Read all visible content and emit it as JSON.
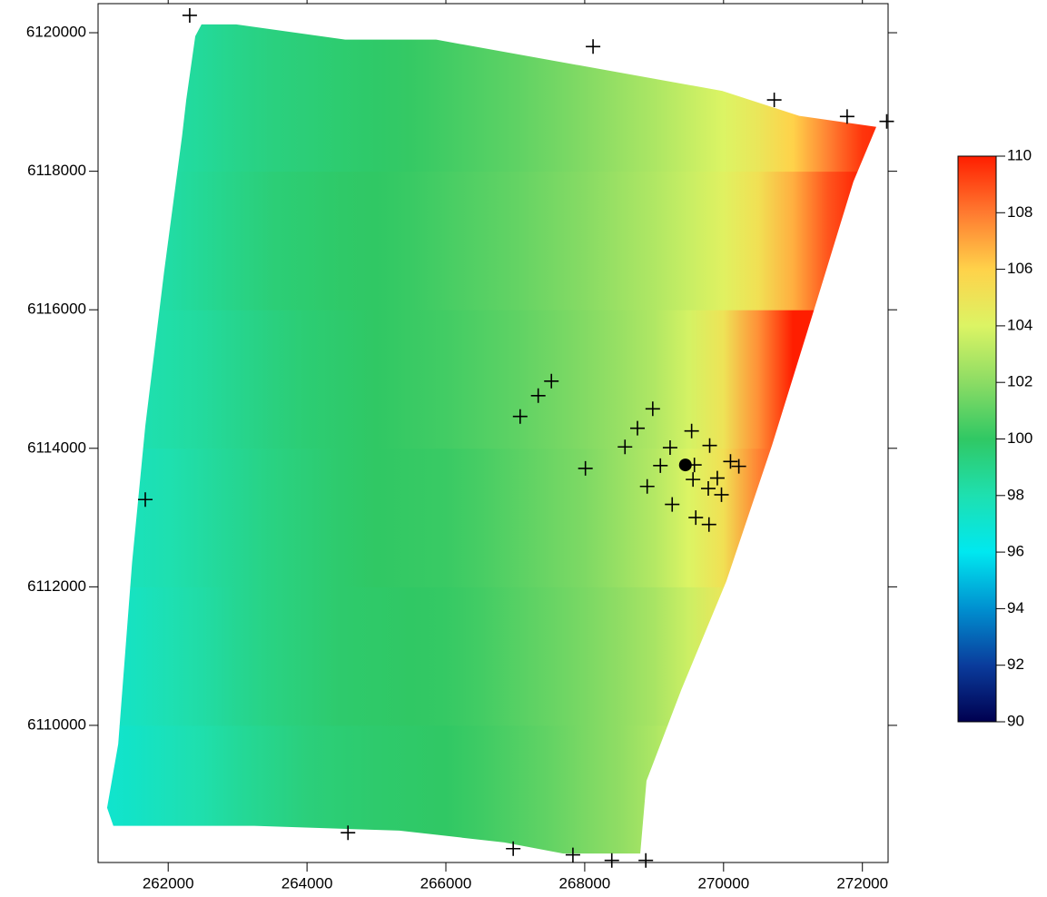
{
  "chart_data": {
    "type": "heatmap",
    "xlim": [
      260990,
      272370
    ],
    "ylim": [
      6108020,
      6120420
    ],
    "xticks": [
      262000,
      264000,
      266000,
      268000,
      270000,
      272000
    ],
    "yticks": [
      6110000,
      6112000,
      6114000,
      6116000,
      6118000,
      6120000
    ],
    "field": {
      "x": [
        261000,
        261500,
        262000,
        262500,
        263000,
        263500,
        264000,
        264500,
        265000,
        265500,
        266000,
        266500,
        267000,
        267500,
        268000,
        268500,
        269000,
        269500,
        270000,
        270500,
        271000,
        271500,
        272000,
        272500
      ],
      "y": [
        6109000,
        6111000,
        6113000,
        6115000,
        6117000,
        6119000
      ],
      "values": [
        [
          97,
          97.3,
          97.7,
          98.1,
          98.6,
          99,
          99.4,
          99.6,
          99.8,
          99.9,
          100,
          100.3,
          100.7,
          101.1,
          101.6,
          102.1,
          102.8,
          103.8,
          104.8,
          105.5,
          106,
          106.5,
          107,
          107.5
        ],
        [
          97.2,
          97.5,
          97.9,
          98.3,
          98.8,
          99.2,
          99.5,
          99.8,
          99.9,
          100,
          100.1,
          100.4,
          100.8,
          101.2,
          101.6,
          102.1,
          102.7,
          103.6,
          104.8,
          105.8,
          106.5,
          107,
          107.5,
          108
        ],
        [
          97.4,
          97.7,
          98,
          98.4,
          98.8,
          99.2,
          99.5,
          99.8,
          100,
          100.1,
          100.2,
          100.5,
          100.9,
          101.3,
          101.7,
          102.3,
          103,
          104,
          105.2,
          107.8,
          109.5,
          110,
          110,
          110
        ],
        [
          97.6,
          97.9,
          98.2,
          98.5,
          98.9,
          99.3,
          99.6,
          99.8,
          100,
          100.2,
          100.4,
          100.7,
          101,
          101.4,
          101.8,
          102.3,
          102.9,
          103.8,
          105,
          107.5,
          110,
          110,
          110,
          110
        ],
        [
          97.8,
          98,
          98.3,
          98.7,
          99.1,
          99.5,
          99.7,
          99.9,
          100,
          100.2,
          100.5,
          100.8,
          101.1,
          101.5,
          101.9,
          102.4,
          102.9,
          103.5,
          104.2,
          105.2,
          106.8,
          108.8,
          110,
          110
        ],
        [
          97.8,
          98,
          98.3,
          98.6,
          99,
          99.3,
          99.5,
          99.7,
          99.9,
          100.1,
          100.4,
          100.7,
          101,
          101.4,
          101.8,
          102.3,
          102.8,
          103.4,
          104,
          104.8,
          106,
          107.8,
          109.5,
          110
        ]
      ]
    },
    "boundary": {
      "x": [
        262480,
        262980,
        264550,
        265860,
        269980,
        271090,
        272200,
        271870,
        271350,
        270700,
        270040,
        269390,
        268890,
        268800,
        267690,
        266840,
        265330,
        263240,
        261210,
        261120,
        261280,
        261480,
        261670,
        261940,
        262200,
        262260,
        262390
      ],
      "y": [
        6120120,
        6120120,
        6119900,
        6119900,
        6119160,
        6118800,
        6118640,
        6117850,
        6116150,
        6114050,
        6112080,
        6110510,
        6109200,
        6108150,
        6108150,
        6108310,
        6108480,
        6108550,
        6108550,
        6108810,
        6109730,
        6112350,
        6114320,
        6116540,
        6118510,
        6119030,
        6119950
      ]
    },
    "colorbar": {
      "clim": [
        90,
        110
      ],
      "ticks": [
        90,
        92,
        94,
        96,
        98,
        100,
        102,
        104,
        106,
        108,
        110
      ],
      "colormap": [
        "#000050",
        "#0a3c9c",
        "#0090d0",
        "#00e8f0",
        "#1ee0b0",
        "#30c864",
        "#8cdc64",
        "#dcf464",
        "#ffd24a",
        "#ff7a30",
        "#ff1e00"
      ]
    },
    "points": {
      "marker": "+",
      "color": "#000000",
      "x": [
        262310,
        268120,
        270730,
        271780,
        272350,
        261670,
        264590,
        266970,
        267830,
        268390,
        268880,
        267520,
        267330,
        267070,
        268980,
        268760,
        268580,
        268010,
        269230,
        269540,
        269800,
        269090,
        269580,
        269560,
        268900,
        269260,
        269780,
        269910,
        269970,
        270100,
        270220,
        269600,
        269790
      ],
      "y": [
        6120250,
        6119800,
        6119030,
        6118790,
        6118720,
        6113260,
        6108450,
        6108220,
        6108130,
        6108050,
        6108050,
        6114970,
        6114760,
        6114460,
        6114570,
        6114290,
        6114020,
        6113710,
        6114010,
        6114250,
        6114040,
        6113750,
        6113760,
        6113550,
        6113450,
        6113190,
        6113420,
        6113570,
        6113330,
        6113810,
        6113740,
        6113000,
        6112900
      ]
    },
    "highlight": {
      "marker": "dot",
      "color": "#000000",
      "x": [
        269450
      ],
      "y": [
        6113760
      ]
    }
  }
}
